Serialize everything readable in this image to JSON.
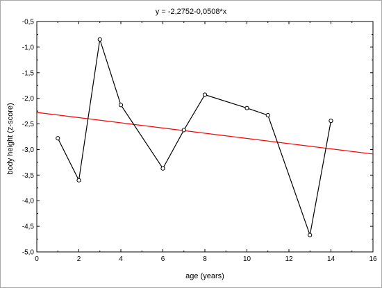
{
  "chart_data": {
    "type": "scatter",
    "title": "y = -2,2752-0,0508*x",
    "xlabel": "age (years)",
    "ylabel": "body height (z-score)",
    "xlim": [
      0,
      16
    ],
    "ylim": [
      -5.0,
      -0.5
    ],
    "x_ticks": [
      0,
      2,
      4,
      6,
      8,
      10,
      12,
      14,
      16
    ],
    "x_tick_labels": [
      "0",
      "2",
      "4",
      "6",
      "8",
      "10",
      "12",
      "14",
      "16"
    ],
    "y_ticks": [
      -0.5,
      -1.0,
      -1.5,
      -2.0,
      -2.5,
      -3.0,
      -3.5,
      -4.0,
      -4.5,
      -5.0
    ],
    "y_tick_labels": [
      "-0,5",
      "-1,0",
      "-1,5",
      "-2,0",
      "-2,5",
      "-3,0",
      "-3,5",
      "-4,0",
      "-4,5",
      "-5,0"
    ],
    "grid": false,
    "series": [
      {
        "x": [
          1,
          2,
          3,
          4,
          6,
          7,
          8,
          10,
          11,
          13,
          14
        ],
        "y": [
          -2.78,
          -3.6,
          -0.85,
          -2.13,
          -3.37,
          -2.62,
          -1.93,
          -2.19,
          -2.33,
          -4.67,
          -2.44
        ],
        "color": "#000000",
        "marker": "open-circle",
        "connected": true
      }
    ],
    "fit_line": {
      "intercept": -2.2752,
      "slope": -0.0508,
      "color": "#ff0000"
    }
  }
}
